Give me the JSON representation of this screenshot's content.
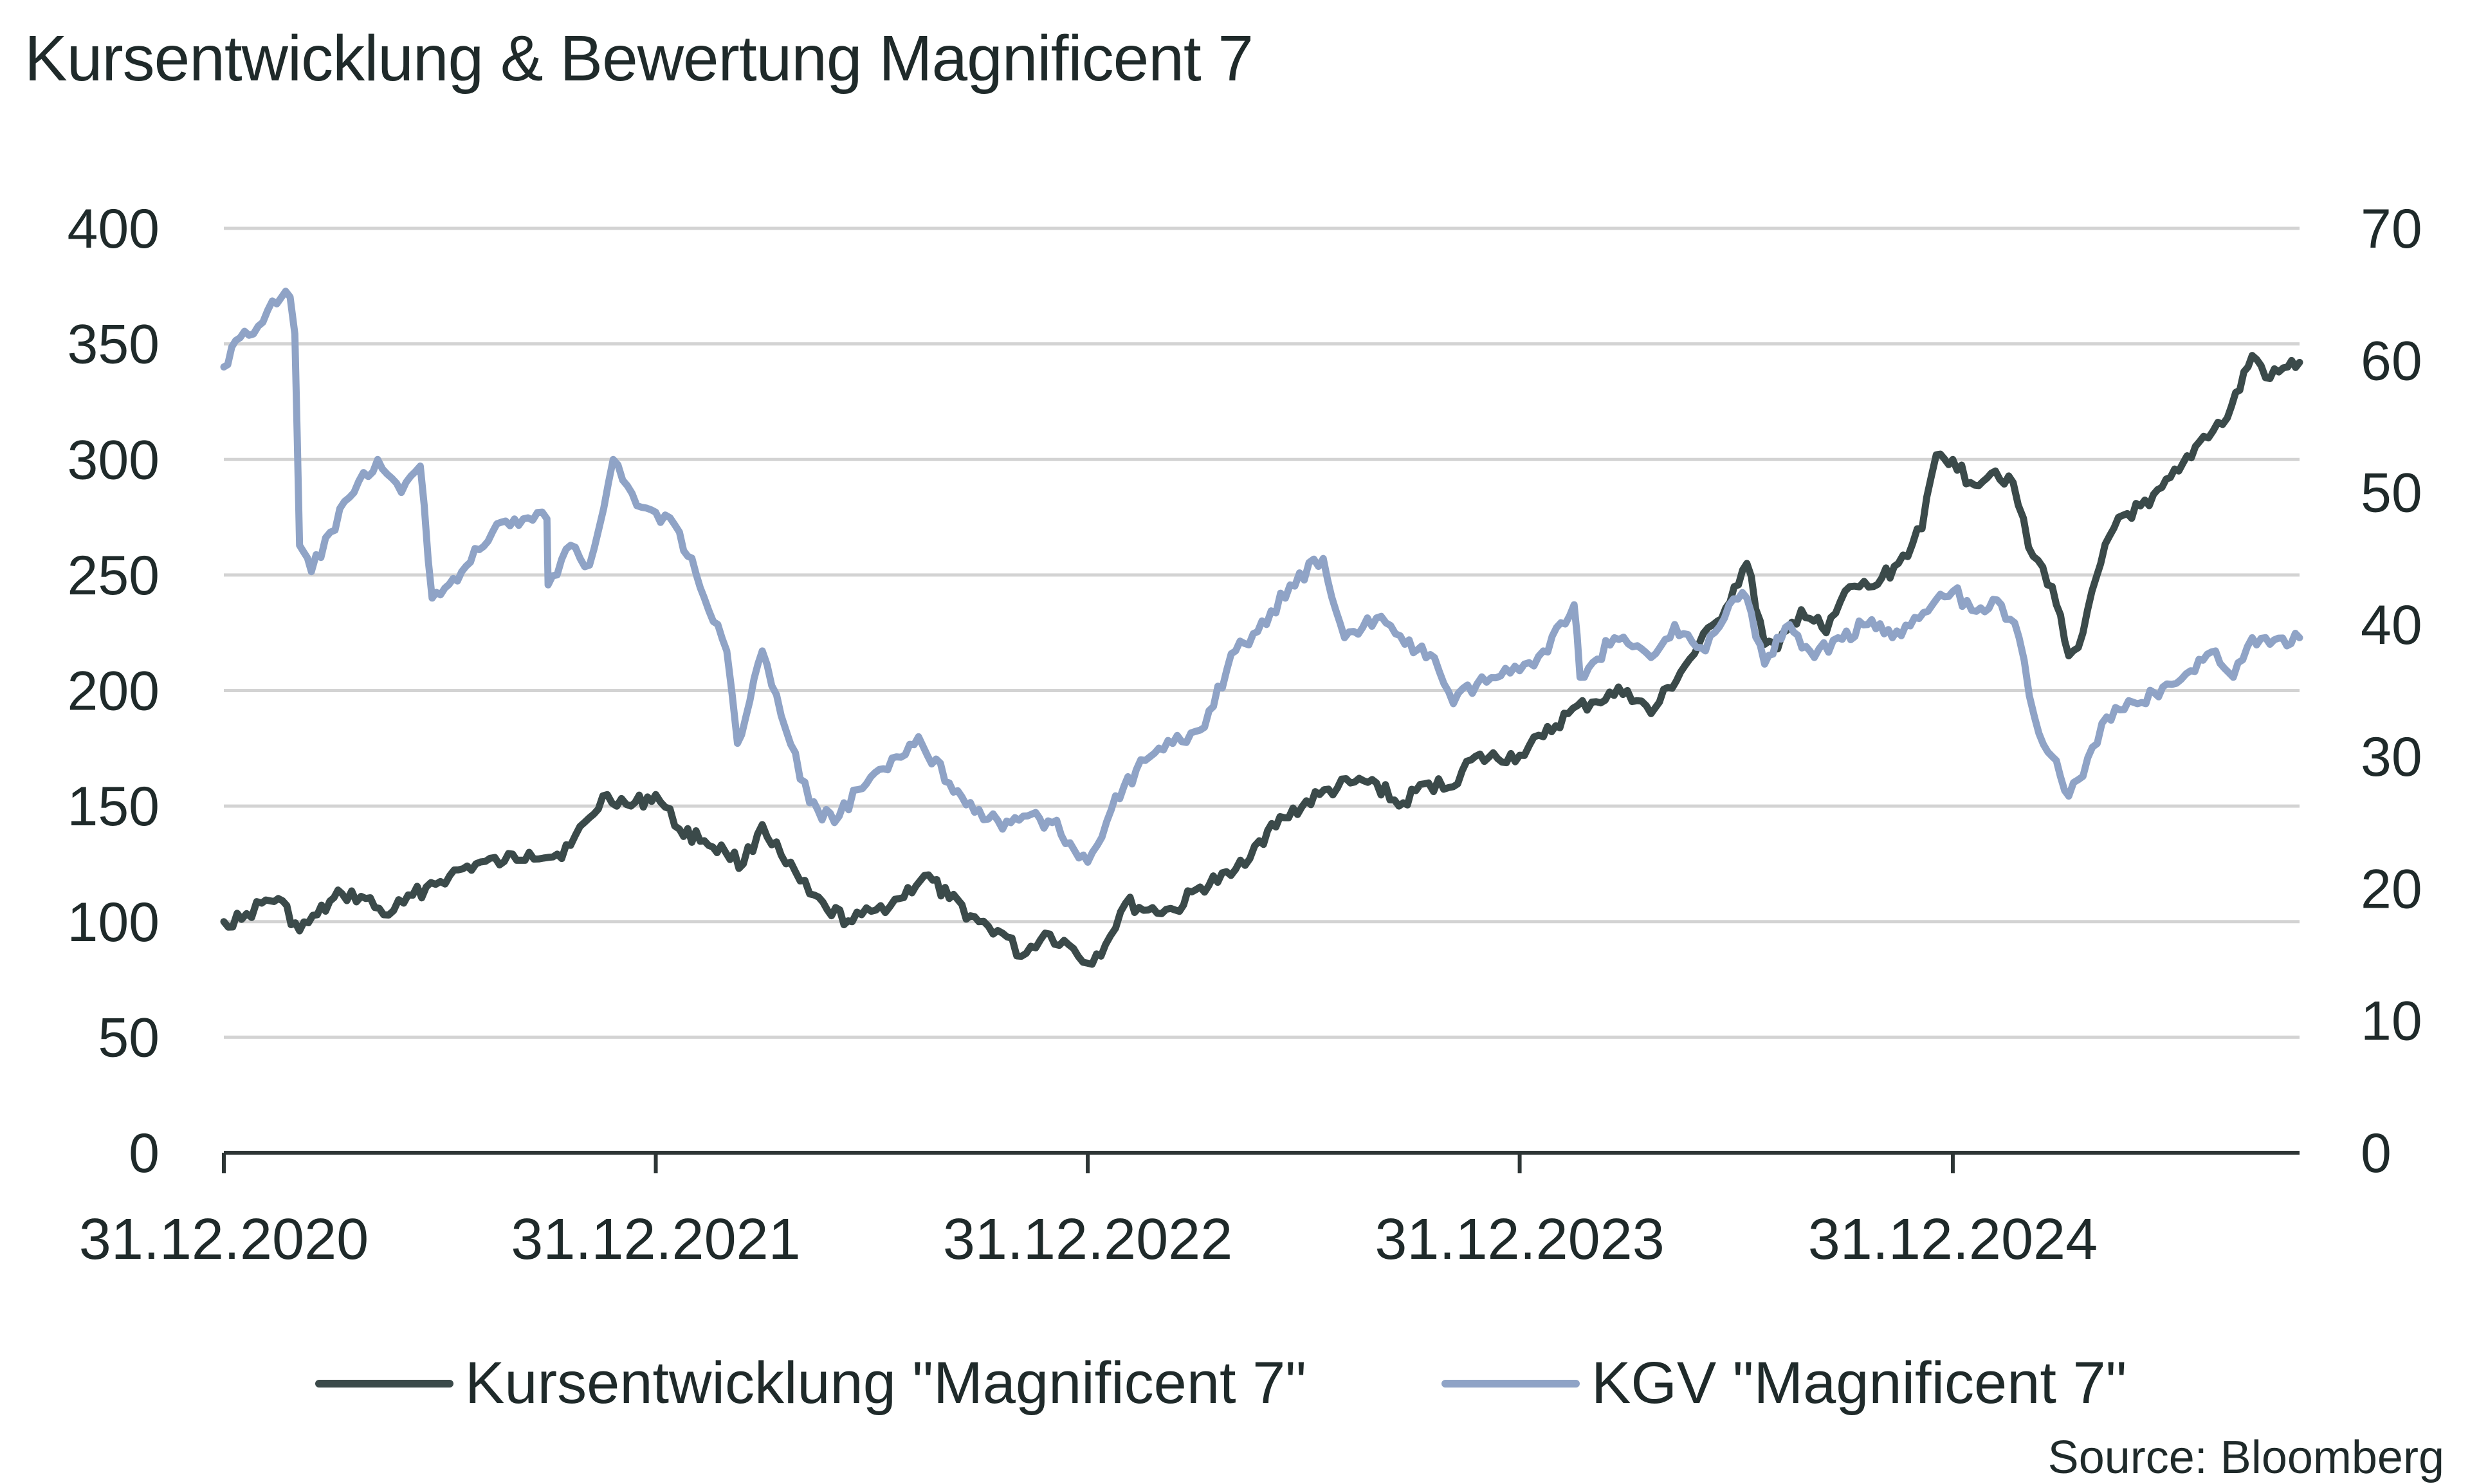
{
  "title": "Kursentwicklung & Bewertung Magnificent 7",
  "source": "Source: Bloomberg",
  "colors": {
    "price_series": "#3b4a4a",
    "pe_series": "#8fa3c6",
    "grid": "#d3d3d3",
    "axis": "#2d3535",
    "text": "#1f2a2a"
  },
  "legend": {
    "price_label": "Kursentwicklung \"Magnificent 7\"",
    "pe_label": "KGV \"Magnificent 7\""
  },
  "chart_data": {
    "type": "line",
    "title": "Kursentwicklung & Bewertung Magnificent 7",
    "x_axis": {
      "type": "date",
      "range": [
        "2020-12-31",
        "2025-10-20"
      ],
      "ticks": [
        "2020-12-31",
        "2021-12-31",
        "2022-12-31",
        "2023-12-31",
        "2024-12-31"
      ],
      "tick_labels": [
        "31.12.2020",
        "31.12.2021",
        "31.12.2022",
        "31.12.2023",
        "31.12.2024"
      ]
    },
    "y_left": {
      "range": [
        0,
        400
      ],
      "ticks": [
        0,
        50,
        100,
        150,
        200,
        250,
        300,
        350,
        400
      ]
    },
    "y_right": {
      "range": [
        0,
        70
      ],
      "ticks": [
        0,
        10,
        20,
        30,
        40,
        50,
        60,
        70
      ]
    },
    "grid": true,
    "legend_position": "bottom",
    "series": [
      {
        "name": "Kursentwicklung \"Magnificent 7\"",
        "axis": "left",
        "color": "#3b4a4a",
        "points": [
          [
            "2020-12-31",
            100
          ],
          [
            "2021-01-15",
            101
          ],
          [
            "2021-02-01",
            108
          ],
          [
            "2021-02-15",
            110
          ],
          [
            "2021-03-05",
            96
          ],
          [
            "2021-03-20",
            103
          ],
          [
            "2021-04-10",
            112
          ],
          [
            "2021-04-30",
            110
          ],
          [
            "2021-05-15",
            103
          ],
          [
            "2021-06-01",
            108
          ],
          [
            "2021-06-20",
            115
          ],
          [
            "2021-07-10",
            120
          ],
          [
            "2021-08-01",
            125
          ],
          [
            "2021-08-25",
            126
          ],
          [
            "2021-09-15",
            130
          ],
          [
            "2021-10-05",
            128
          ],
          [
            "2021-10-20",
            133
          ],
          [
            "2021-11-05",
            145
          ],
          [
            "2021-11-20",
            155
          ],
          [
            "2021-12-10",
            150
          ],
          [
            "2021-12-31",
            155
          ],
          [
            "2022-01-20",
            140
          ],
          [
            "2022-02-10",
            135
          ],
          [
            "2022-02-28",
            130
          ],
          [
            "2022-03-15",
            125
          ],
          [
            "2022-03-31",
            142
          ],
          [
            "2022-04-20",
            125
          ],
          [
            "2022-05-10",
            112
          ],
          [
            "2022-05-25",
            105
          ],
          [
            "2022-06-15",
            100
          ],
          [
            "2022-07-05",
            105
          ],
          [
            "2022-07-25",
            110
          ],
          [
            "2022-08-15",
            120
          ],
          [
            "2022-09-05",
            110
          ],
          [
            "2022-09-30",
            100
          ],
          [
            "2022-10-20",
            95
          ],
          [
            "2022-11-05",
            85
          ],
          [
            "2022-11-25",
            95
          ],
          [
            "2022-12-15",
            90
          ],
          [
            "2022-12-31",
            82
          ],
          [
            "2023-01-15",
            90
          ],
          [
            "2023-02-01",
            108
          ],
          [
            "2023-02-20",
            105
          ],
          [
            "2023-03-15",
            105
          ],
          [
            "2023-04-05",
            115
          ],
          [
            "2023-05-01",
            120
          ],
          [
            "2023-05-25",
            135
          ],
          [
            "2023-06-15",
            145
          ],
          [
            "2023-07-15",
            155
          ],
          [
            "2023-08-10",
            160
          ],
          [
            "2023-09-01",
            160
          ],
          [
            "2023-09-20",
            150
          ],
          [
            "2023-10-15",
            160
          ],
          [
            "2023-11-01",
            158
          ],
          [
            "2023-11-20",
            170
          ],
          [
            "2023-12-31",
            172
          ],
          [
            "2024-01-20",
            180
          ],
          [
            "2024-02-10",
            190
          ],
          [
            "2024-03-01",
            195
          ],
          [
            "2024-03-31",
            200
          ],
          [
            "2024-04-20",
            190
          ],
          [
            "2024-05-15",
            208
          ],
          [
            "2024-06-15",
            230
          ],
          [
            "2024-07-10",
            255
          ],
          [
            "2024-07-25",
            220
          ],
          [
            "2024-08-05",
            218
          ],
          [
            "2024-08-25",
            235
          ],
          [
            "2024-09-15",
            225
          ],
          [
            "2024-10-05",
            245
          ],
          [
            "2024-10-25",
            245
          ],
          [
            "2024-11-15",
            255
          ],
          [
            "2024-12-05",
            270
          ],
          [
            "2024-12-17",
            302
          ],
          [
            "2024-12-31",
            300
          ],
          [
            "2025-01-15",
            290
          ],
          [
            "2025-02-05",
            295
          ],
          [
            "2025-02-20",
            290
          ],
          [
            "2025-03-05",
            262
          ],
          [
            "2025-03-25",
            245
          ],
          [
            "2025-04-08",
            215
          ],
          [
            "2025-04-20",
            225
          ],
          [
            "2025-05-05",
            255
          ],
          [
            "2025-05-20",
            275
          ],
          [
            "2025-06-15",
            280
          ],
          [
            "2025-07-10",
            295
          ],
          [
            "2025-07-31",
            310
          ],
          [
            "2025-08-20",
            318
          ],
          [
            "2025-09-10",
            345
          ],
          [
            "2025-09-25",
            335
          ],
          [
            "2025-10-10",
            340
          ],
          [
            "2025-10-20",
            342
          ]
        ]
      },
      {
        "name": "KGV \"Magnificent 7\"",
        "axis": "right",
        "color": "#8fa3c6",
        "points": [
          [
            "2020-12-31",
            59.5
          ],
          [
            "2021-01-10",
            61.5
          ],
          [
            "2021-01-25",
            62
          ],
          [
            "2021-02-10",
            64.5
          ],
          [
            "2021-02-25",
            64.8
          ],
          [
            "2021-03-01",
            62
          ],
          [
            "2021-03-05",
            46
          ],
          [
            "2021-03-15",
            44
          ],
          [
            "2021-03-31",
            47
          ],
          [
            "2021-04-20",
            50
          ],
          [
            "2021-05-10",
            52.5
          ],
          [
            "2021-05-30",
            50
          ],
          [
            "2021-06-15",
            52
          ],
          [
            "2021-06-25",
            42
          ],
          [
            "2021-07-20",
            44
          ],
          [
            "2021-08-15",
            47
          ],
          [
            "2021-09-10",
            48
          ],
          [
            "2021-09-30",
            48
          ],
          [
            "2021-10-01",
            43
          ],
          [
            "2021-10-20",
            46
          ],
          [
            "2021-11-05",
            44.5
          ],
          [
            "2021-11-25",
            52.5
          ],
          [
            "2021-12-15",
            49
          ],
          [
            "2021-12-31",
            48.5
          ],
          [
            "2022-01-20",
            47
          ],
          [
            "2022-02-10",
            42
          ],
          [
            "2022-03-01",
            38
          ],
          [
            "2022-03-10",
            31
          ],
          [
            "2022-03-31",
            38
          ],
          [
            "2022-04-20",
            32
          ],
          [
            "2022-05-10",
            26.5
          ],
          [
            "2022-05-31",
            25
          ],
          [
            "2022-06-20",
            27.5
          ],
          [
            "2022-07-15",
            29
          ],
          [
            "2022-08-10",
            31.5
          ],
          [
            "2022-09-05",
            28
          ],
          [
            "2022-09-30",
            26
          ],
          [
            "2022-10-20",
            24.5
          ],
          [
            "2022-11-10",
            25.5
          ],
          [
            "2022-12-01",
            25
          ],
          [
            "2022-12-31",
            22
          ],
          [
            "2023-01-20",
            26
          ],
          [
            "2023-02-10",
            29
          ],
          [
            "2023-03-05",
            30.5
          ],
          [
            "2023-04-05",
            32
          ],
          [
            "2023-05-05",
            38
          ],
          [
            "2023-05-31",
            40
          ],
          [
            "2023-06-20",
            43
          ],
          [
            "2023-07-18",
            45
          ],
          [
            "2023-08-05",
            39
          ],
          [
            "2023-09-01",
            40.5
          ],
          [
            "2023-09-25",
            38.5
          ],
          [
            "2023-10-20",
            37.5
          ],
          [
            "2023-11-05",
            34
          ],
          [
            "2023-11-25",
            35.5
          ],
          [
            "2023-12-31",
            36.5
          ],
          [
            "2024-01-20",
            38
          ],
          [
            "2024-02-15",
            41.5
          ],
          [
            "2024-02-20",
            36
          ],
          [
            "2024-03-20",
            39
          ],
          [
            "2024-04-20",
            37.5
          ],
          [
            "2024-05-10",
            40
          ],
          [
            "2024-06-05",
            38
          ],
          [
            "2024-06-25",
            41.5
          ],
          [
            "2024-07-10",
            42
          ],
          [
            "2024-07-25",
            37
          ],
          [
            "2024-08-15",
            40
          ],
          [
            "2024-09-05",
            37.5
          ],
          [
            "2024-09-25",
            39
          ],
          [
            "2024-10-20",
            40
          ],
          [
            "2024-11-10",
            39
          ],
          [
            "2024-12-10",
            41
          ],
          [
            "2024-12-31",
            42.5
          ],
          [
            "2025-01-20",
            41
          ],
          [
            "2025-02-10",
            41.5
          ],
          [
            "2025-02-25",
            39
          ],
          [
            "2025-03-10",
            33
          ],
          [
            "2025-03-25",
            30
          ],
          [
            "2025-04-08",
            27
          ],
          [
            "2025-04-20",
            28.5
          ],
          [
            "2025-05-10",
            33
          ],
          [
            "2025-06-05",
            34
          ],
          [
            "2025-06-30",
            35.5
          ],
          [
            "2025-07-20",
            36.5
          ],
          [
            "2025-08-10",
            38
          ],
          [
            "2025-08-25",
            36
          ],
          [
            "2025-09-10",
            39
          ],
          [
            "2025-09-25",
            38.5
          ],
          [
            "2025-10-20",
            39
          ]
        ]
      }
    ]
  }
}
